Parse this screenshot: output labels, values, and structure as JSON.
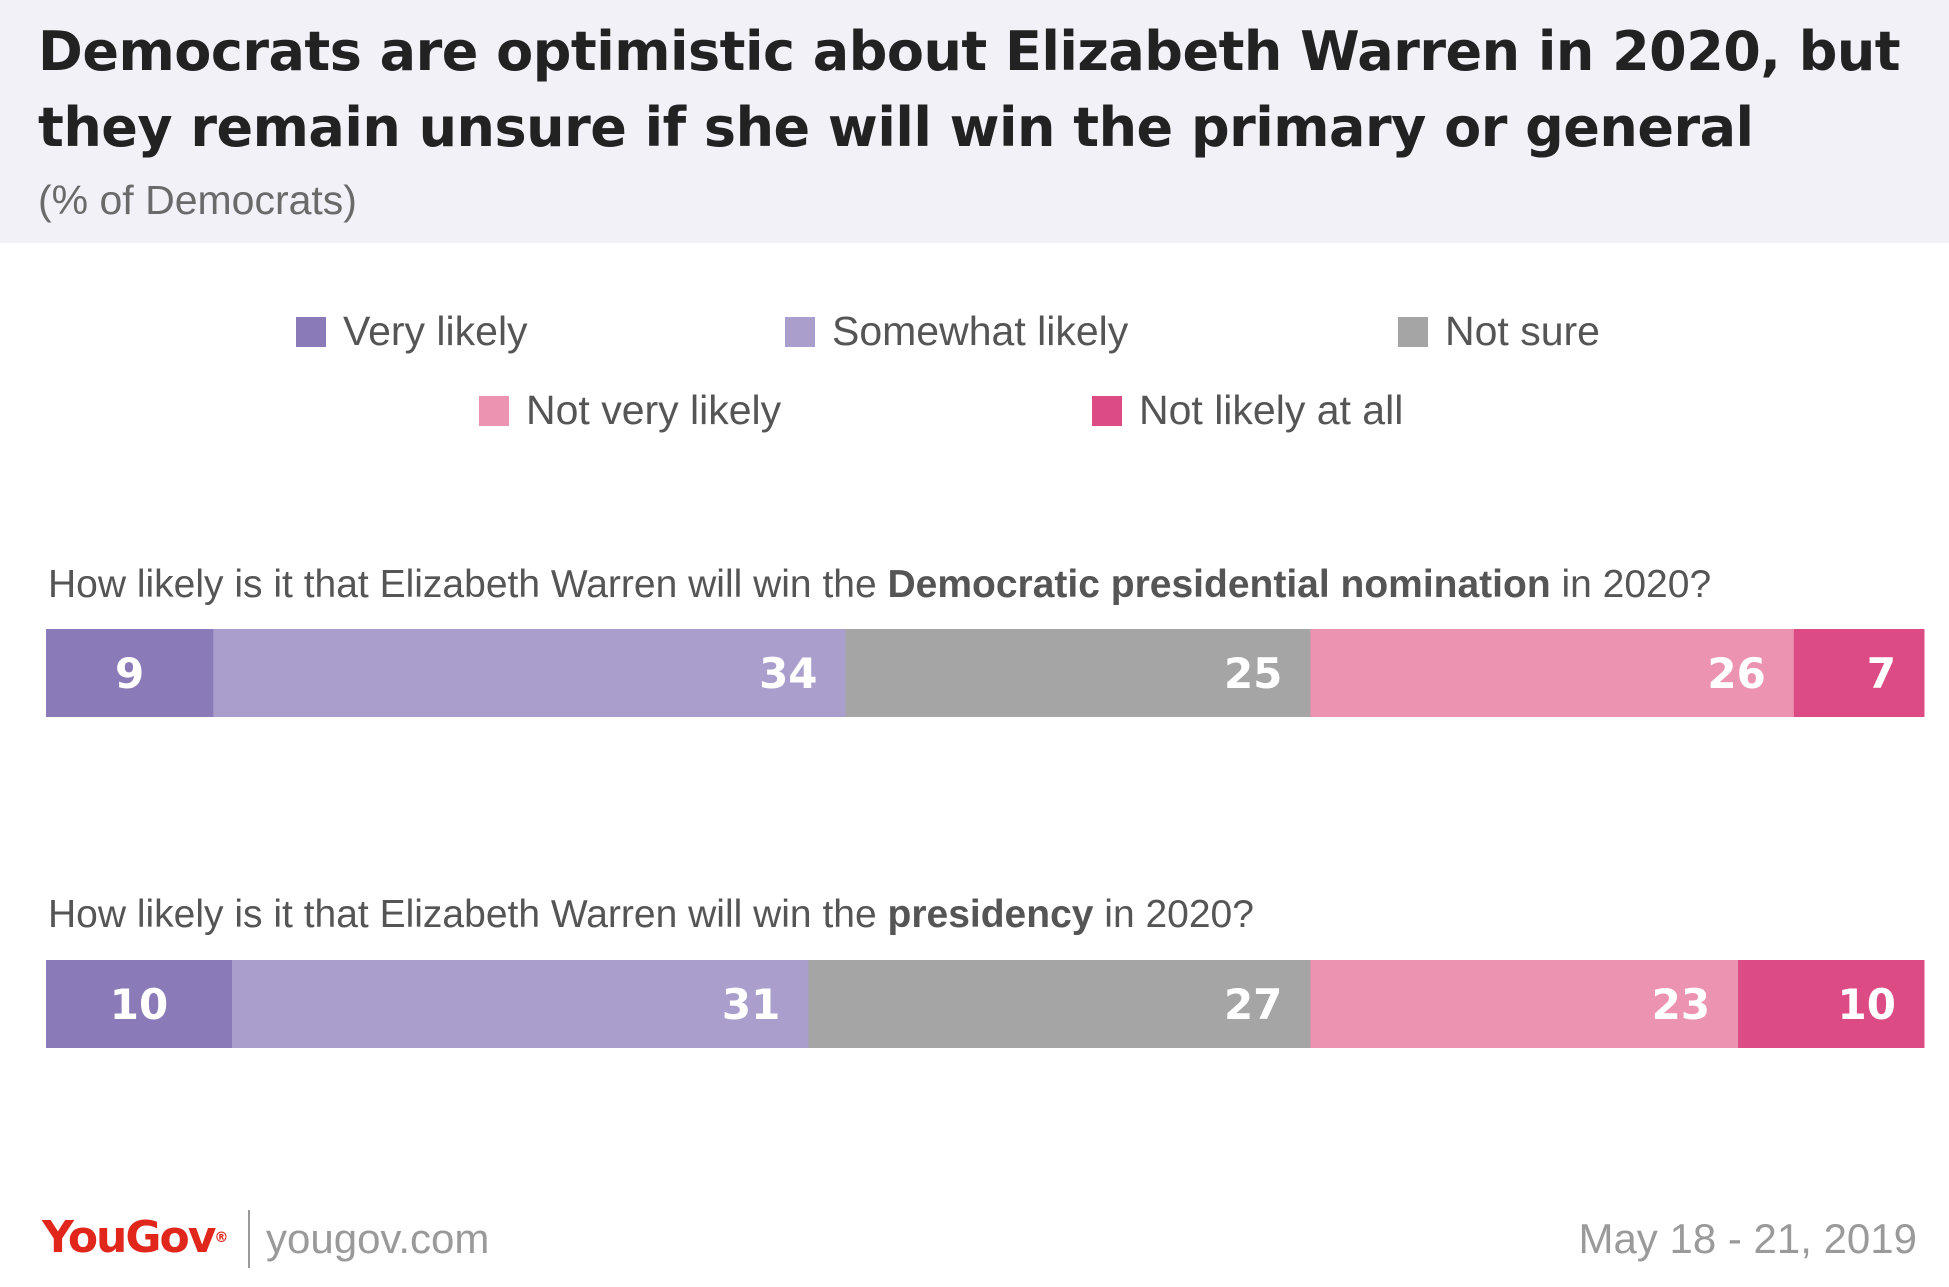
{
  "header": {
    "title_line1": "Democrats are optimistic about Elizabeth Warren in 2020, but",
    "title_line2": "they remain unsure if she will win the primary or general",
    "subtitle": "(% of Democrats)"
  },
  "legend": {
    "items": [
      {
        "label": "Very likely",
        "color": "#8a7bb8"
      },
      {
        "label": "Somewhat likely",
        "color": "#aa9fcc"
      },
      {
        "label": "Not sure",
        "color": "#a5a5a5"
      },
      {
        "label": "Not very likely",
        "color": "#ec93b1"
      },
      {
        "label": "Not likely at all",
        "color": "#dc4b84"
      }
    ]
  },
  "questions": [
    {
      "prefix": "How likely is it that Elizabeth Warren will win the ",
      "bold": "Democratic presidential nomination",
      "suffix": " in 2020?"
    },
    {
      "prefix": "How likely is it that Elizabeth Warren will win the ",
      "bold": "presidency",
      "suffix": " in 2020?"
    }
  ],
  "chart_data": {
    "type": "bar",
    "orientation": "horizontal",
    "stacked": true,
    "categories": [
      "How likely is it that Elizabeth Warren will win the Democratic presidential nomination in 2020?",
      "How likely is it that Elizabeth Warren will win the presidency in 2020?"
    ],
    "series": [
      {
        "name": "Very likely",
        "values": [
          9,
          10
        ],
        "color": "#8a7bb8"
      },
      {
        "name": "Somewhat likely",
        "values": [
          34,
          31
        ],
        "color": "#aa9fcc"
      },
      {
        "name": "Not sure",
        "values": [
          25,
          27
        ],
        "color": "#a5a5a5"
      },
      {
        "name": "Not very likely",
        "values": [
          26,
          23
        ],
        "color": "#ec93b1"
      },
      {
        "name": "Not likely at all",
        "values": [
          7,
          10
        ],
        "color": "#dc4b84"
      }
    ],
    "title": "Democrats are optimistic about Elizabeth Warren in 2020, but they remain unsure if she will win the primary or general",
    "subtitle": "(% of Democrats)",
    "legend_position": "top",
    "grid": false
  },
  "footer": {
    "logo_you": "You",
    "logo_gov": "Gov",
    "logo_mark": "®",
    "site": "yougov.com",
    "date": "May 18 - 21, 2019"
  }
}
